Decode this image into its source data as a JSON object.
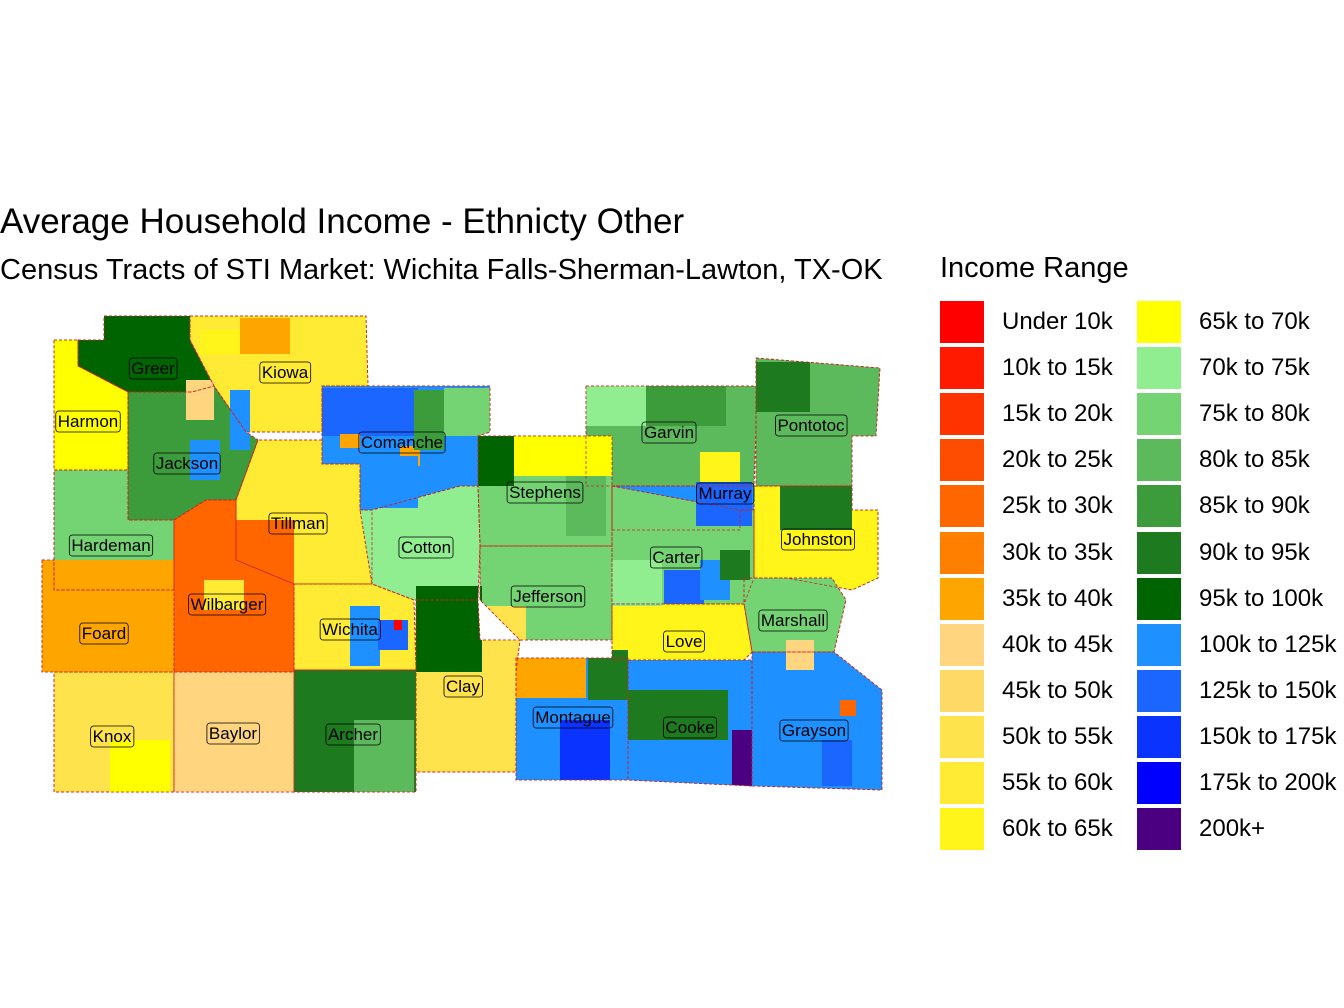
{
  "title": "Average Household Income - Ethnicty Other",
  "subtitle": "Census Tracts of STI Market: Wichita Falls-Sherman-Lawton, TX-OK",
  "legend": {
    "title": "Income Range",
    "items": [
      {
        "label": "Under 10k",
        "color": "#FF0000"
      },
      {
        "label": "10k to 15k",
        "color": "#FF1A00"
      },
      {
        "label": "15k to 20k",
        "color": "#FF3300"
      },
      {
        "label": "20k to 25k",
        "color": "#FF4D00"
      },
      {
        "label": "25k to 30k",
        "color": "#FF6600"
      },
      {
        "label": "30k to 35k",
        "color": "#FF8000"
      },
      {
        "label": "35k to 40k",
        "color": "#FFA500"
      },
      {
        "label": "40k to 45k",
        "color": "#FFD580"
      },
      {
        "label": "45k to 50k",
        "color": "#FFD966"
      },
      {
        "label": "50k to 55k",
        "color": "#FFE34D"
      },
      {
        "label": "55k to 60k",
        "color": "#FFEB33"
      },
      {
        "label": "60k to 65k",
        "color": "#FFF51A"
      },
      {
        "label": "65k to 70k",
        "color": "#FFFF00"
      },
      {
        "label": "70k to 75k",
        "color": "#90EE90"
      },
      {
        "label": "75k to 80k",
        "color": "#74D474"
      },
      {
        "label": "80k to 85k",
        "color": "#5CBA5C"
      },
      {
        "label": "85k to 90k",
        "color": "#3C9C3C"
      },
      {
        "label": "90k to 95k",
        "color": "#1E7A1E"
      },
      {
        "label": "95k to 100k",
        "color": "#006400"
      },
      {
        "label": "100k to 125k",
        "color": "#1E90FF"
      },
      {
        "label": "125k to 150k",
        "color": "#1A66FF"
      },
      {
        "label": "150k to 175k",
        "color": "#0A33FF"
      },
      {
        "label": "175k to 200k",
        "color": "#0000FF"
      },
      {
        "label": "200k+",
        "color": "#4B0082"
      }
    ]
  },
  "counties": [
    {
      "name": "Greer",
      "band": 18
    },
    {
      "name": "Kiowa",
      "band": 10
    },
    {
      "name": "Harmon",
      "band": 12
    },
    {
      "name": "Jackson",
      "band": 16
    },
    {
      "name": "Comanche",
      "band": 19
    },
    {
      "name": "Garvin",
      "band": 15
    },
    {
      "name": "Pontotoc",
      "band": 15
    },
    {
      "name": "Stephens",
      "band": 14
    },
    {
      "name": "Murray",
      "band": 19
    },
    {
      "name": "Tillman",
      "band": 10
    },
    {
      "name": "Cotton",
      "band": 13
    },
    {
      "name": "Johnston",
      "band": 11
    },
    {
      "name": "Hardeman",
      "band": 14
    },
    {
      "name": "Carter",
      "band": 14
    },
    {
      "name": "Jefferson",
      "band": 14
    },
    {
      "name": "Foard",
      "band": 6
    },
    {
      "name": "Wilbarger",
      "band": 4
    },
    {
      "name": "Wichita",
      "band": 10
    },
    {
      "name": "Marshall",
      "band": 14
    },
    {
      "name": "Love",
      "band": 11
    },
    {
      "name": "Clay",
      "band": 9
    },
    {
      "name": "Montague",
      "band": 19
    },
    {
      "name": "Cooke",
      "band": 19
    },
    {
      "name": "Knox",
      "band": 9
    },
    {
      "name": "Baylor",
      "band": 7
    },
    {
      "name": "Archer",
      "band": 17
    },
    {
      "name": "Grayson",
      "band": 19
    }
  ]
}
